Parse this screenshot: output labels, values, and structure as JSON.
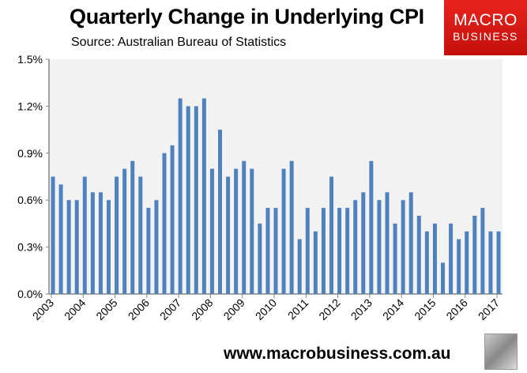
{
  "chart_data": {
    "type": "bar",
    "title": "Quarterly Change in Underlying CPI",
    "subtitle": "Source: Australian Bureau of Statistics",
    "ylim": [
      0,
      1.5
    ],
    "yticks": [
      "0.0%",
      "0.3%",
      "0.6%",
      "0.9%",
      "1.2%",
      "1.5%"
    ],
    "ytick_values": [
      0,
      0.3,
      0.6,
      0.9,
      1.2,
      1.5
    ],
    "xtick_labels": [
      "2003",
      "2004",
      "2005",
      "2006",
      "2007",
      "2008",
      "2009",
      "2010",
      "2011",
      "2012",
      "2013",
      "2014",
      "2015",
      "2016",
      "2017"
    ],
    "values": [
      0.75,
      0.7,
      0.6,
      0.6,
      0.75,
      0.65,
      0.65,
      0.6,
      0.75,
      0.8,
      0.85,
      0.75,
      0.55,
      0.6,
      0.9,
      0.95,
      1.25,
      1.2,
      1.2,
      1.25,
      0.8,
      1.05,
      0.75,
      0.8,
      0.85,
      0.8,
      0.45,
      0.55,
      0.55,
      0.8,
      0.85,
      0.35,
      0.55,
      0.4,
      0.55,
      0.75,
      0.55,
      0.55,
      0.6,
      0.65,
      0.85,
      0.6,
      0.65,
      0.45,
      0.6,
      0.65,
      0.5,
      0.4,
      0.45,
      0.2,
      0.45,
      0.35,
      0.4,
      0.5,
      0.55,
      0.4,
      0.4
    ],
    "bar_color": "#4f81bd",
    "plot_background": "#f2f2f2",
    "grid": false,
    "legend": "none"
  },
  "logo": {
    "line1": "MACRO",
    "line2": "BUSINESS"
  },
  "footer": {
    "url": "www.macrobusiness.com.au"
  }
}
